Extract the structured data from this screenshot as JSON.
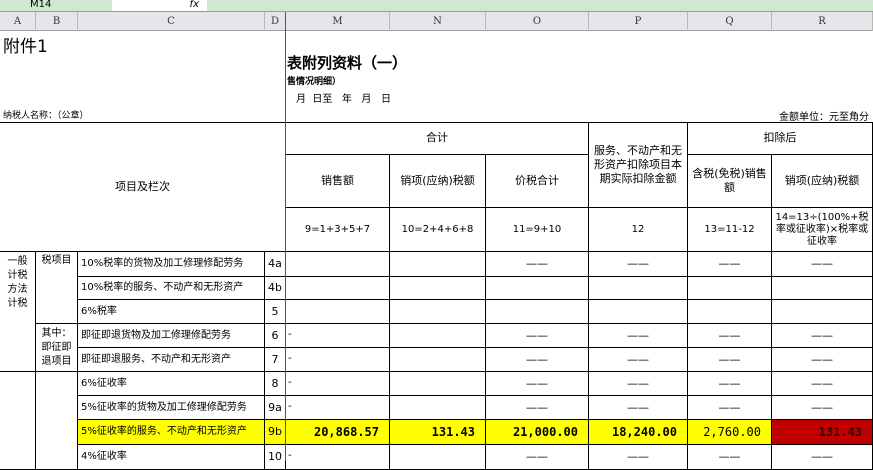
{
  "formula_bar": {
    "name_box": "M14",
    "fx": "fx"
  },
  "columns": [
    "A",
    "B",
    "C",
    "D",
    "M",
    "N",
    "O",
    "P",
    "Q",
    "R"
  ],
  "title": {
    "attachment": "附件1",
    "main": "表附列资料（一）",
    "sub": "售情况明细）",
    "period": "月  日至   年   月   日",
    "taxpayer": "纳税人名称：（公章）",
    "unit": "金额单位：元至角分"
  },
  "header": {
    "item_col": "项目及栏次",
    "total": "合计",
    "sales": "销售额",
    "output_tax": "销项(应纳)税额",
    "total_price_tax": "价税合计",
    "deduction": "服务、不动产和无形资产扣除项目本期实际扣除金额",
    "after_deduction": "扣除后",
    "tax_incl_sales": "含税(免税)销售额",
    "after_output_tax": "销项(应纳)税额",
    "formulas": [
      "9=1+3+5+7",
      "10=2+4+6+8",
      "11=9+10",
      "12",
      "13=11-12",
      "14=13÷(100%+税率或征收率)×税率或征收率"
    ]
  },
  "groups": {
    "general": "一般计税方法计税",
    "tax_items": "税项目",
    "immediate": "其中：即征即退项目"
  },
  "dash": "——",
  "tick": "-",
  "rows": [
    {
      "label": "10%税率的货物及加工修理修配劳务",
      "no": "4a",
      "dashes": true,
      "tick": false
    },
    {
      "label": "10%税率的服务、不动产和无形资产",
      "no": "4b",
      "dashes": false,
      "tick": false
    },
    {
      "label": "6%税率",
      "no": "5",
      "dashes": false,
      "tick": false
    },
    {
      "label": "即征即退货物及加工修理修配劳务",
      "no": "6",
      "dashes": true,
      "tick": true
    },
    {
      "label": "即征即退服务、不动产和无形资产",
      "no": "7",
      "dashes": true,
      "tick": true
    },
    {
      "label": "6%征收率",
      "no": "8",
      "dashes": true,
      "tick": true
    },
    {
      "label": "5%征收率的货物及加工修理修配劳务",
      "no": "9a",
      "dashes": true,
      "tick": true
    },
    {
      "label": "5%征收率的服务、不动产和无形资产",
      "no": "9b",
      "highlight": true,
      "values": [
        "20,868.57",
        "131.43",
        "21,000.00",
        "18,240.00",
        "2,760.00",
        "131.43"
      ]
    },
    {
      "label": "4%征收率",
      "no": "10",
      "dashes": true,
      "tick": true
    }
  ],
  "colors": {
    "highlight": "#ffff00",
    "alert": "#c00000"
  }
}
